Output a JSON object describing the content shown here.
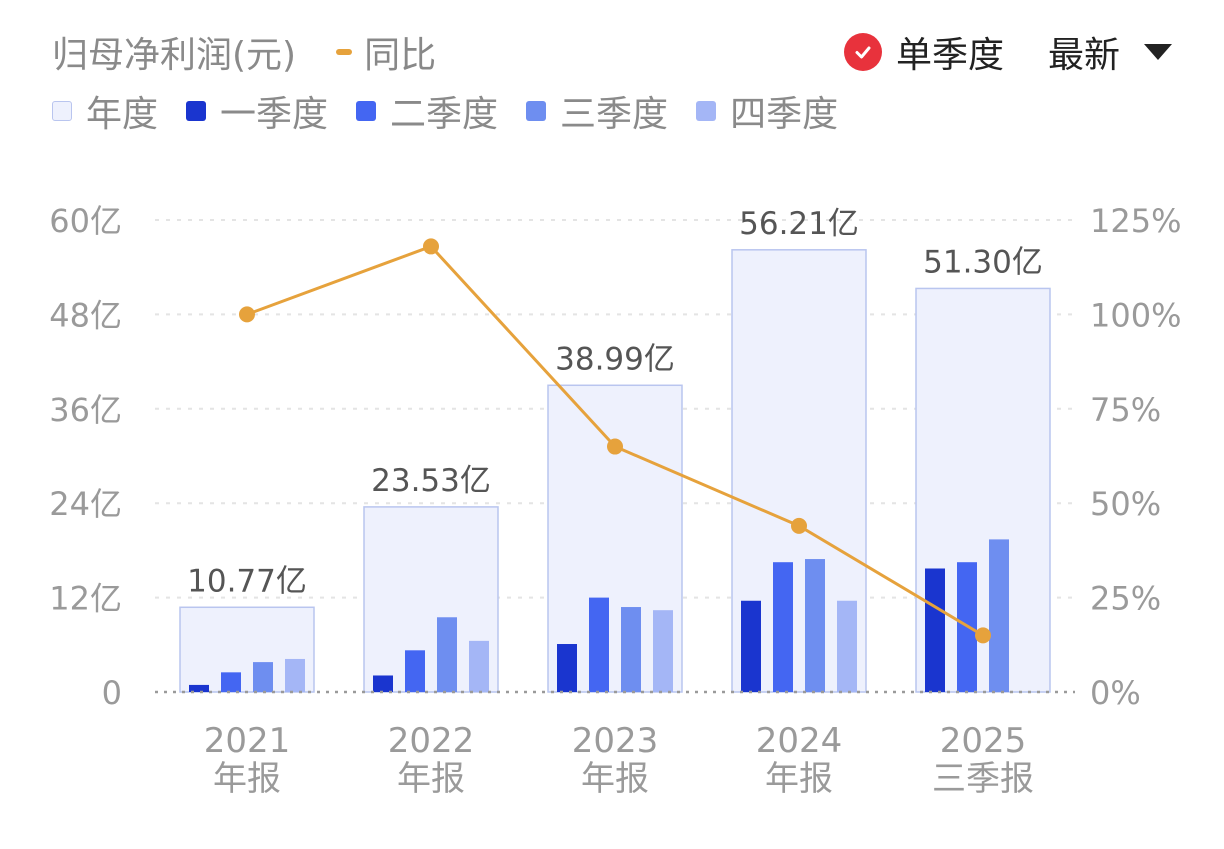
{
  "header": {
    "series_title": "归母净利润(元)",
    "line_legend": "同比",
    "toggle_label": "单季度",
    "sort_label": "最新"
  },
  "legend": [
    {
      "label": "年度",
      "color": "#eef1fd"
    },
    {
      "label": "一季度",
      "color": "#1a35cf"
    },
    {
      "label": "二季度",
      "color": "#4466f2"
    },
    {
      "label": "三季度",
      "color": "#6e8ef0"
    },
    {
      "label": "四季度",
      "color": "#a4b6f6"
    }
  ],
  "colors": {
    "line": "#E6A23C",
    "annual_fill": "#eef1fd",
    "annual_stroke": "#b9c5ef",
    "check_badge": "#E8323C"
  },
  "chart_data": {
    "type": "bar",
    "categories": [
      {
        "year": "2021",
        "period": "年报"
      },
      {
        "year": "2022",
        "period": "年报"
      },
      {
        "year": "2023",
        "period": "年报"
      },
      {
        "year": "2024",
        "period": "年报"
      },
      {
        "year": "2025",
        "period": "三季报"
      }
    ],
    "annual": {
      "name": "年度",
      "values": [
        10.77,
        23.53,
        38.99,
        56.21,
        51.3
      ],
      "labels": [
        "10.77亿",
        "23.53亿",
        "38.99亿",
        "56.21亿",
        "51.30亿"
      ]
    },
    "quarters": [
      {
        "name": "一季度",
        "values": [
          0.9,
          2.1,
          6.1,
          11.6,
          15.7
        ]
      },
      {
        "name": "二季度",
        "values": [
          2.5,
          5.3,
          12.0,
          16.5,
          16.5
        ]
      },
      {
        "name": "三季度",
        "values": [
          3.8,
          9.5,
          10.8,
          16.9,
          19.4
        ]
      },
      {
        "name": "四季度",
        "values": [
          4.2,
          6.5,
          10.4,
          11.6,
          null
        ]
      }
    ],
    "yoy": {
      "name": "同比",
      "values": [
        100,
        118,
        65,
        44,
        15
      ]
    },
    "y_left": {
      "ticks": [
        "0",
        "12亿",
        "24亿",
        "36亿",
        "48亿",
        "60亿"
      ],
      "range": [
        0,
        60
      ]
    },
    "y_right": {
      "ticks": [
        "0%",
        "25%",
        "50%",
        "75%",
        "100%",
        "125%"
      ],
      "range": [
        0,
        125
      ]
    },
    "grid": true,
    "legend_position": "top-left"
  }
}
